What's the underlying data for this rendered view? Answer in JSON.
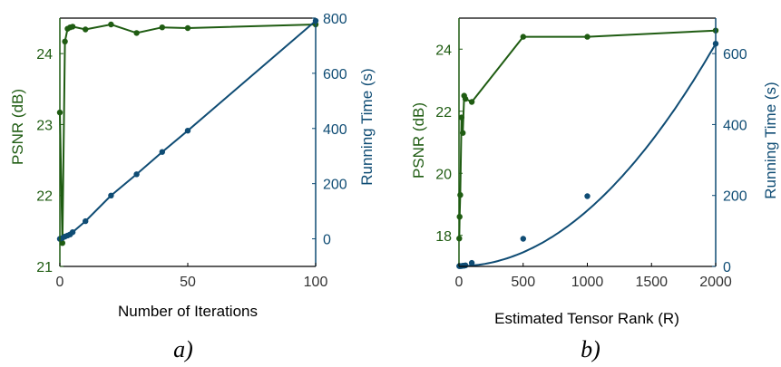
{
  "colors": {
    "psnr": "#1f5c12",
    "time": "#0f4c74",
    "axis": "#000000"
  },
  "chart_data": [
    {
      "type": "line",
      "caption": "a)",
      "xlabel": "Number of Iterations",
      "ylabel_left": "PSNR (dB)",
      "ylabel_right": "Running Time (s)",
      "xlim": [
        0,
        100
      ],
      "ylim_left": [
        21,
        24.5
      ],
      "ylim_right": [
        -100,
        800
      ],
      "xticks": [
        0,
        50,
        100
      ],
      "yticks_left": [
        21,
        22,
        23,
        24
      ],
      "yticks_right": [
        0,
        200,
        400,
        600,
        800
      ],
      "series": [
        {
          "axis": "left",
          "curve": "polyline",
          "x": [
            0,
            1,
            2,
            3,
            4,
            5,
            10,
            20,
            30,
            40,
            50,
            100
          ],
          "y": [
            23.17,
            21.33,
            24.17,
            24.35,
            24.37,
            24.38,
            24.34,
            24.41,
            24.29,
            24.37,
            24.36,
            24.41
          ]
        },
        {
          "axis": "right",
          "curve": "polyline",
          "x": [
            0,
            1,
            2,
            3,
            4,
            5,
            10,
            20,
            30,
            40,
            50,
            100
          ],
          "y": [
            0,
            3,
            8,
            12,
            16,
            24,
            64,
            157,
            234,
            315,
            392,
            790
          ]
        }
      ]
    },
    {
      "type": "line",
      "caption": "b)",
      "xlabel": "Estimated Tensor Rank (R)",
      "ylabel_left": "PSNR (dB)",
      "ylabel_right": "Running Time (s)",
      "xlim": [
        0,
        2000
      ],
      "ylim_left": [
        17,
        25
      ],
      "ylim_right": [
        0,
        700
      ],
      "xticks": [
        0,
        500,
        1000,
        1500,
        2000
      ],
      "yticks_left": [
        18,
        20,
        22,
        24
      ],
      "yticks_right": [
        0,
        200,
        400,
        600
      ],
      "series": [
        {
          "axis": "left",
          "curve": "polyline",
          "x": [
            2,
            5,
            10,
            20,
            30,
            40,
            50,
            100,
            500,
            1000,
            2000
          ],
          "y": [
            17.9,
            18.6,
            19.3,
            21.8,
            21.3,
            22.5,
            22.4,
            22.3,
            24.4,
            24.4,
            24.6
          ]
        },
        {
          "axis": "right",
          "curve": "smooth",
          "x": [
            2,
            5,
            10,
            20,
            30,
            40,
            50,
            100,
            500,
            1000,
            2000
          ],
          "y": [
            1,
            1,
            1,
            1,
            2,
            2,
            3,
            10,
            78,
            198,
            628
          ]
        }
      ]
    }
  ]
}
